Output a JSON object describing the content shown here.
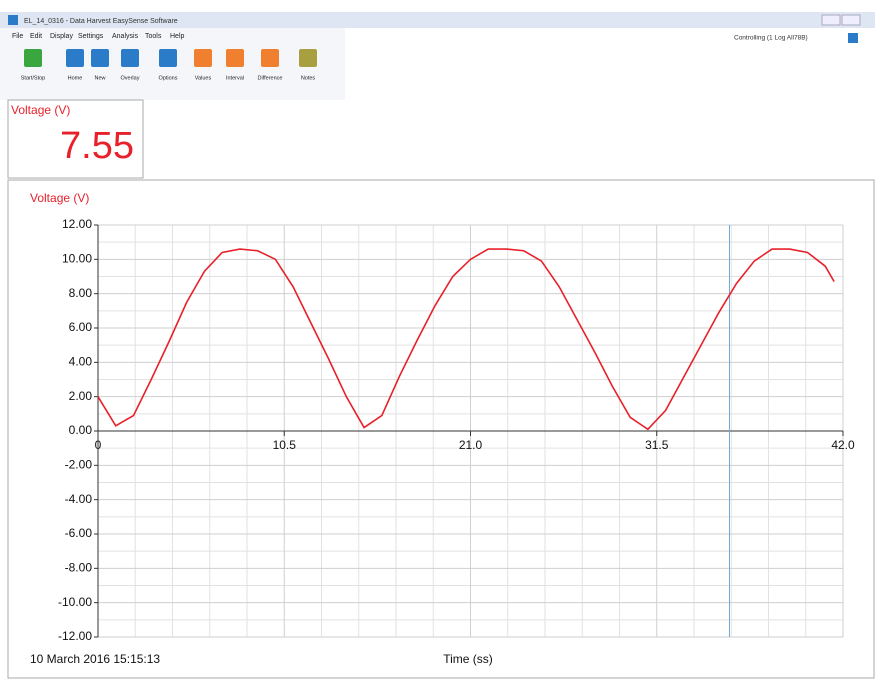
{
  "window": {
    "title": "EL_14_0316 - Data Harvest EasySense Software",
    "status": "Controlling (1 Log All78B)"
  },
  "menu": [
    "File",
    "Edit",
    "Display",
    "Settings",
    "Analysis",
    "Tools",
    "Help"
  ],
  "toolbar": [
    {
      "label": "Start/Stop",
      "color": "#3aa640"
    },
    {
      "label": "Home",
      "color": "#2b7cc8"
    },
    {
      "label": "New",
      "color": "#2b7cc8"
    },
    {
      "label": "Overlay",
      "color": "#2b7cc8"
    },
    {
      "label": "Options",
      "color": "#2b7cc8"
    },
    {
      "label": "Values",
      "color": "#f08030"
    },
    {
      "label": "Interval",
      "color": "#f08030"
    },
    {
      "label": "Difference",
      "color": "#f08030"
    },
    {
      "label": "Notes",
      "color": "#a8a040"
    }
  ],
  "meter": {
    "label": "Voltage (V)",
    "reading": "7.55"
  },
  "footer": {
    "timestamp": "10 March 2016  15:15:13"
  },
  "chart_data": {
    "type": "line",
    "y_label": "Voltage (V)",
    "x_label": "Time (ss)",
    "x": [
      0,
      1,
      2,
      3,
      4,
      5,
      6,
      7,
      8,
      9,
      10,
      11,
      12,
      13,
      14,
      15,
      16,
      17,
      18,
      19,
      20,
      21,
      22,
      23,
      24,
      25,
      26,
      27,
      28,
      29,
      30,
      31,
      32,
      33,
      34,
      35,
      36,
      37,
      38,
      39,
      40,
      41,
      41.5
    ],
    "series": [
      {
        "name": "Voltage (V)",
        "color": "#e8202a",
        "values": [
          2.0,
          0.3,
          0.9,
          3.0,
          5.2,
          7.5,
          9.3,
          10.4,
          10.6,
          10.5,
          10.0,
          8.4,
          6.3,
          4.2,
          2.0,
          0.2,
          0.9,
          3.2,
          5.3,
          7.3,
          9.0,
          10.0,
          10.6,
          10.6,
          10.5,
          9.9,
          8.4,
          6.5,
          4.6,
          2.6,
          0.8,
          0.1,
          1.2,
          3.1,
          5.0,
          6.9,
          8.6,
          9.9,
          10.6,
          10.6,
          10.4,
          9.6,
          8.7
        ]
      }
    ],
    "xlim": [
      0,
      42
    ],
    "xticks": [
      0,
      10.5,
      {
        "value": 21,
        "label": "21.0"
      },
      31.5,
      {
        "value": 42,
        "label": "42.0"
      }
    ],
    "ylim": [
      -12,
      12
    ],
    "yticks": [
      {
        "value": 12,
        "label": "12.00"
      },
      {
        "value": 10,
        "label": "10.00"
      },
      {
        "value": 8,
        "label": "8.00"
      },
      {
        "value": 6,
        "label": "6.00"
      },
      {
        "value": 4,
        "label": "4.00"
      },
      {
        "value": 2,
        "label": "2.00"
      },
      {
        "value": 0,
        "label": "0.00"
      },
      {
        "value": -2,
        "label": "-2.00"
      },
      {
        "value": -4,
        "label": "-4.00"
      },
      {
        "value": -6,
        "label": "-6.00"
      },
      {
        "value": -8,
        "label": "-8.00"
      },
      {
        "value": -10,
        "label": "-10.00"
      },
      {
        "value": -12,
        "label": "-12.00"
      }
    ],
    "cursor": 35.6,
    "grid": true
  }
}
